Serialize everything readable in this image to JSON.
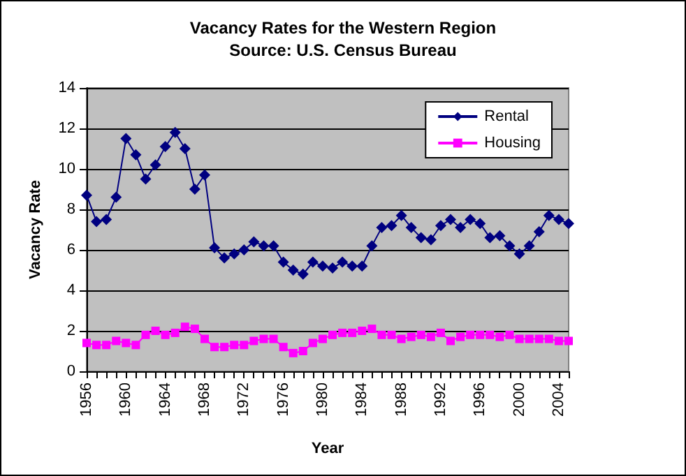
{
  "chart_data": {
    "type": "line",
    "title": "Vacancy Rates for the Western Region",
    "subtitle": "Source: U.S. Census Bureau",
    "xlabel": "Year",
    "ylabel": "Vacancy Rate",
    "categories": [
      "1956",
      null,
      null,
      null,
      "1960",
      null,
      null,
      null,
      "1964",
      null,
      null,
      null,
      "1968",
      null,
      null,
      null,
      "1972",
      null,
      null,
      null,
      "1976",
      null,
      null,
      null,
      "1980",
      null,
      null,
      null,
      "1984",
      null,
      null,
      null,
      "1988",
      null,
      null,
      null,
      "1992",
      null,
      null,
      null,
      "1996",
      null,
      null,
      null,
      "2000",
      null,
      null,
      null,
      "2004",
      null
    ],
    "series": [
      {
        "name": "Rental",
        "color": "#000080",
        "marker": "diamond",
        "values": [
          8.7,
          7.4,
          7.5,
          8.6,
          11.5,
          10.7,
          9.5,
          10.2,
          11.1,
          11.8,
          11.0,
          9.0,
          9.7,
          6.1,
          5.6,
          5.8,
          6.0,
          6.4,
          6.2,
          6.2,
          5.4,
          5.0,
          4.8,
          5.4,
          5.2,
          5.1,
          5.4,
          5.2,
          5.2,
          6.2,
          7.1,
          7.2,
          7.7,
          7.1,
          6.6,
          6.5,
          7.2,
          7.5,
          7.1,
          7.5,
          7.3,
          6.6,
          6.7,
          6.2,
          5.8,
          6.2,
          6.9,
          7.7,
          7.5,
          7.3
        ]
      },
      {
        "name": "Housing",
        "color": "#ff00ff",
        "marker": "square",
        "values": [
          1.4,
          1.3,
          1.3,
          1.5,
          1.4,
          1.3,
          1.8,
          2.0,
          1.8,
          1.9,
          2.2,
          2.1,
          1.6,
          1.2,
          1.2,
          1.3,
          1.3,
          1.5,
          1.6,
          1.6,
          1.2,
          0.9,
          1.0,
          1.4,
          1.6,
          1.8,
          1.9,
          1.9,
          2.0,
          2.1,
          1.8,
          1.8,
          1.6,
          1.7,
          1.8,
          1.7,
          1.9,
          1.5,
          1.7,
          1.8,
          1.8,
          1.8,
          1.7,
          1.8,
          1.6,
          1.6,
          1.6,
          1.6,
          1.5,
          1.5
        ]
      }
    ],
    "ylim": [
      0,
      14
    ],
    "yticks": [
      0,
      2,
      4,
      6,
      8,
      10,
      12,
      14
    ],
    "grid": "y",
    "legend": "top right",
    "line_style": "solid"
  }
}
